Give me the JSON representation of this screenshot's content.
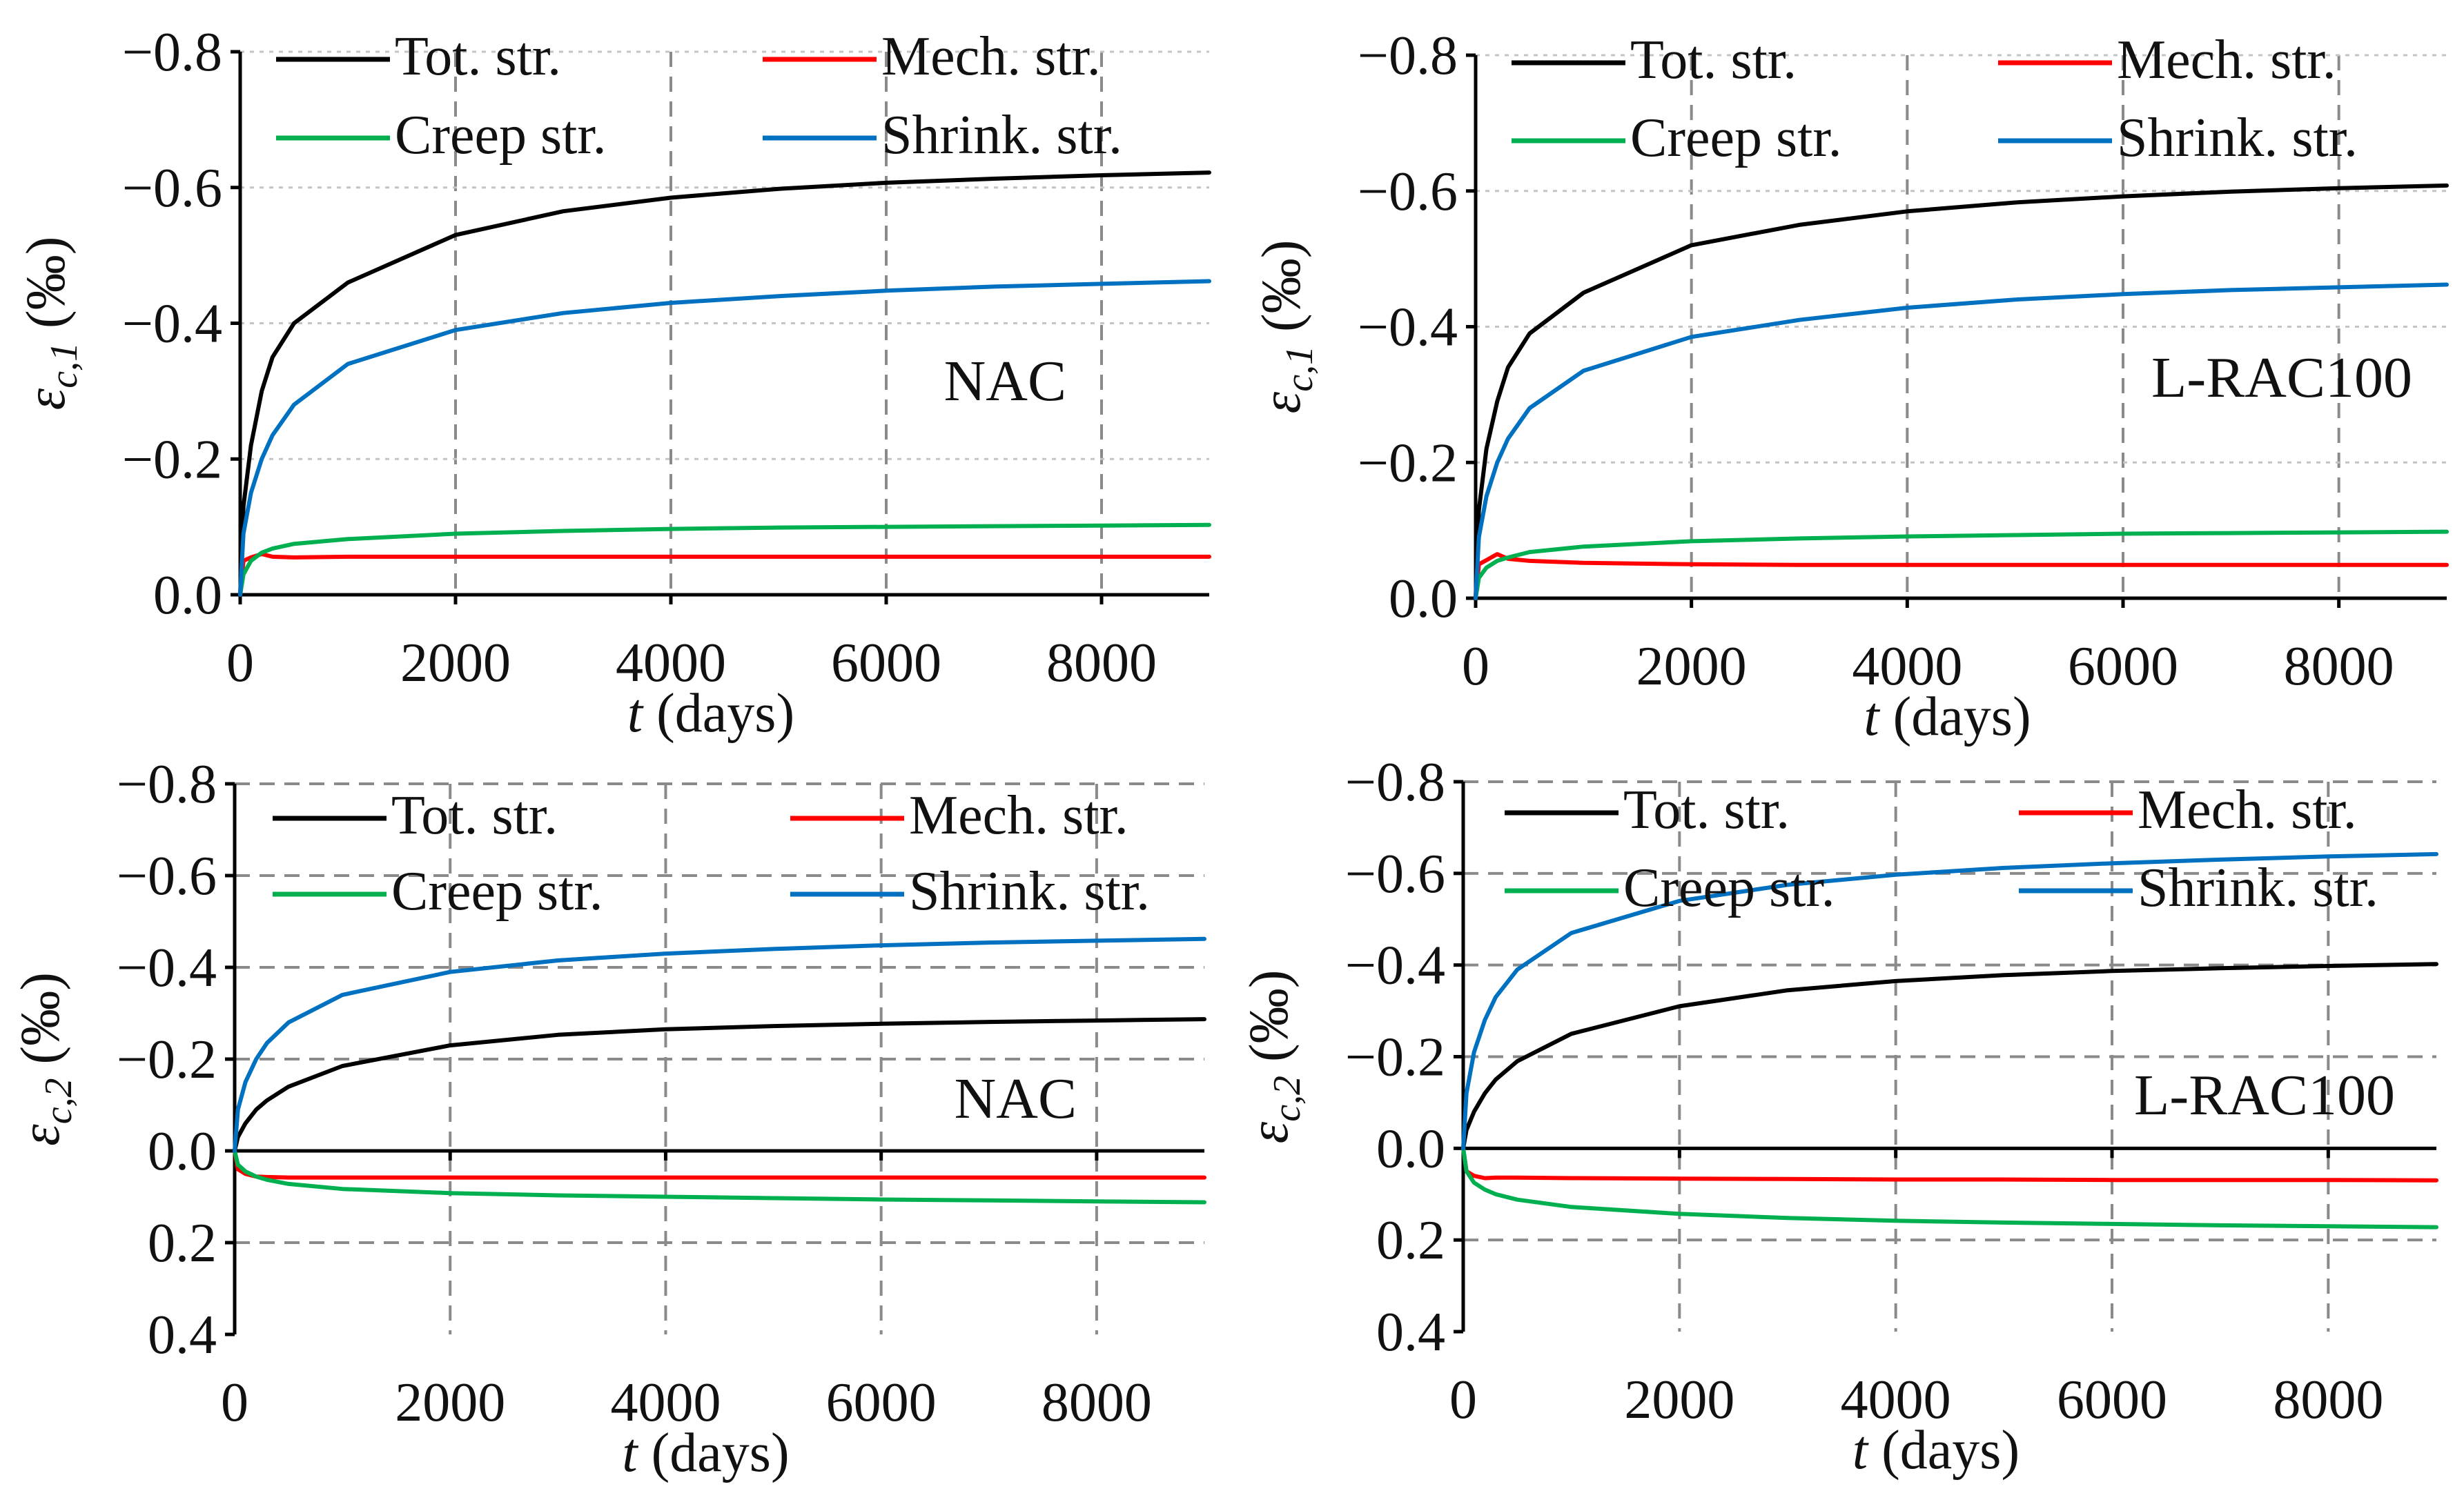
{
  "chart_data": [
    {
      "type": "line",
      "panel": "top-left",
      "annotation": "NAC",
      "xlabel_var": "t",
      "xlabel_unit": " (days)",
      "ylabel_base": "ε",
      "ylabel_sub": "c,1",
      "ylabel_unit": " (‰)",
      "xlim": [
        0,
        9000
      ],
      "ylim": [
        0.0,
        -0.8
      ],
      "xticks": [
        0,
        2000,
        4000,
        6000,
        8000
      ],
      "xtick_labels": [
        "0",
        "2000",
        "4000",
        "6000",
        "8000"
      ],
      "yticks": [
        0.0,
        -0.2,
        -0.4,
        -0.6,
        -0.8
      ],
      "ytick_labels": [
        "0.0",
        "−0.2",
        "−0.4",
        "−0.6",
        "−0.8"
      ],
      "grid": "vertical-dashed",
      "legend": "top",
      "series": [
        {
          "name": "Tot. str.",
          "color": "#000000",
          "x": [
            0,
            30,
            100,
            200,
            300,
            500,
            1000,
            2000,
            3000,
            4000,
            5000,
            6000,
            7000,
            8000,
            9000
          ],
          "y": [
            0.0,
            -0.13,
            -0.22,
            -0.3,
            -0.35,
            -0.4,
            -0.46,
            -0.53,
            -0.565,
            -0.585,
            -0.598,
            -0.607,
            -0.613,
            -0.618,
            -0.622
          ]
        },
        {
          "name": "Mech. str.",
          "color": "#ff0000",
          "x": [
            0,
            30,
            100,
            200,
            300,
            500,
            1000,
            2000,
            3000,
            4000,
            5000,
            6000,
            7000,
            8000,
            9000
          ],
          "y": [
            0.0,
            -0.05,
            -0.055,
            -0.06,
            -0.056,
            -0.055,
            -0.056,
            -0.056,
            -0.056,
            -0.056,
            -0.056,
            -0.056,
            -0.056,
            -0.056,
            -0.056
          ]
        },
        {
          "name": "Creep str.",
          "color": "#00b050",
          "x": [
            0,
            30,
            100,
            200,
            300,
            500,
            1000,
            2000,
            3000,
            4000,
            5000,
            6000,
            7000,
            8000,
            9000
          ],
          "y": [
            0.0,
            -0.03,
            -0.05,
            -0.062,
            -0.068,
            -0.075,
            -0.082,
            -0.09,
            -0.094,
            -0.097,
            -0.099,
            -0.1,
            -0.101,
            -0.102,
            -0.103
          ]
        },
        {
          "name": "Shrink. str.",
          "color": "#0070c0",
          "x": [
            0,
            30,
            100,
            200,
            300,
            500,
            1000,
            2000,
            3000,
            4000,
            5000,
            6000,
            7000,
            8000,
            9000
          ],
          "y": [
            0.0,
            -0.09,
            -0.15,
            -0.2,
            -0.235,
            -0.28,
            -0.34,
            -0.39,
            -0.415,
            -0.43,
            -0.44,
            -0.448,
            -0.454,
            -0.458,
            -0.462
          ]
        }
      ]
    },
    {
      "type": "line",
      "panel": "top-right",
      "annotation": "L-RAC100",
      "xlabel_var": "t",
      "xlabel_unit": " (days)",
      "ylabel_base": "ε",
      "ylabel_sub": "c,1",
      "ylabel_unit": " (‰)",
      "xlim": [
        0,
        9000
      ],
      "ylim": [
        0.0,
        -0.8
      ],
      "xticks": [
        0,
        2000,
        4000,
        6000,
        8000
      ],
      "xtick_labels": [
        "0",
        "2000",
        "4000",
        "6000",
        "8000"
      ],
      "yticks": [
        0.0,
        -0.2,
        -0.4,
        -0.6,
        -0.8
      ],
      "ytick_labels": [
        "0.0",
        "−0.2",
        "−0.4",
        "−0.6",
        "−0.8"
      ],
      "grid": "vertical-dashed",
      "legend": "top",
      "series": [
        {
          "name": "Tot. str.",
          "color": "#000000",
          "x": [
            0,
            30,
            100,
            200,
            300,
            500,
            1000,
            2000,
            3000,
            4000,
            5000,
            6000,
            7000,
            8000,
            9000
          ],
          "y": [
            0.0,
            -0.13,
            -0.22,
            -0.29,
            -0.34,
            -0.39,
            -0.45,
            -0.52,
            -0.55,
            -0.57,
            -0.583,
            -0.592,
            -0.599,
            -0.604,
            -0.608
          ]
        },
        {
          "name": "Mech. str.",
          "color": "#ff0000",
          "x": [
            0,
            30,
            100,
            200,
            300,
            500,
            1000,
            2000,
            3000,
            4000,
            5000,
            6000,
            7000,
            8000,
            9000
          ],
          "y": [
            0.0,
            -0.05,
            -0.056,
            -0.065,
            -0.058,
            -0.055,
            -0.052,
            -0.05,
            -0.049,
            -0.049,
            -0.049,
            -0.049,
            -0.049,
            -0.049,
            -0.049
          ]
        },
        {
          "name": "Creep str.",
          "color": "#00b050",
          "x": [
            0,
            30,
            100,
            200,
            300,
            500,
            1000,
            2000,
            3000,
            4000,
            5000,
            6000,
            7000,
            8000,
            9000
          ],
          "y": [
            0.0,
            -0.03,
            -0.045,
            -0.055,
            -0.06,
            -0.068,
            -0.076,
            -0.084,
            -0.088,
            -0.091,
            -0.093,
            -0.095,
            -0.096,
            -0.097,
            -0.098
          ]
        },
        {
          "name": "Shrink. str.",
          "color": "#0070c0",
          "x": [
            0,
            30,
            100,
            200,
            300,
            500,
            1000,
            2000,
            3000,
            4000,
            5000,
            6000,
            7000,
            8000,
            9000
          ],
          "y": [
            0.0,
            -0.09,
            -0.15,
            -0.2,
            -0.235,
            -0.28,
            -0.335,
            -0.385,
            -0.41,
            -0.428,
            -0.44,
            -0.448,
            -0.454,
            -0.458,
            -0.462
          ]
        }
      ]
    },
    {
      "type": "line",
      "panel": "bottom-left",
      "annotation": "NAC",
      "xlabel_var": "t",
      "xlabel_unit": " (days)",
      "ylabel_base": "ε",
      "ylabel_sub": "c,2",
      "ylabel_unit": " (‰)",
      "xlim": [
        0,
        9000
      ],
      "ylim": [
        0.4,
        -0.8
      ],
      "xticks": [
        0,
        2000,
        4000,
        6000,
        8000
      ],
      "xtick_labels": [
        "0",
        "2000",
        "4000",
        "6000",
        "8000"
      ],
      "yticks": [
        0.4,
        0.2,
        0.0,
        -0.2,
        -0.4,
        -0.6,
        -0.8
      ],
      "ytick_labels": [
        "0.4",
        "0.2",
        "0.0",
        "−0.2",
        "−0.4",
        "−0.6",
        "−0.8"
      ],
      "grid": "dashed",
      "legend": "top",
      "series": [
        {
          "name": "Tot. str.",
          "color": "#000000",
          "x": [
            0,
            30,
            100,
            200,
            300,
            500,
            1000,
            2000,
            3000,
            4000,
            5000,
            6000,
            7000,
            8000,
            9000
          ],
          "y": [
            0.0,
            -0.03,
            -0.06,
            -0.09,
            -0.11,
            -0.14,
            -0.185,
            -0.23,
            -0.253,
            -0.265,
            -0.272,
            -0.277,
            -0.281,
            -0.284,
            -0.287
          ]
        },
        {
          "name": "Mech. str.",
          "color": "#ff0000",
          "x": [
            0,
            30,
            100,
            200,
            300,
            500,
            1000,
            2000,
            3000,
            4000,
            5000,
            6000,
            7000,
            8000,
            9000
          ],
          "y": [
            0.0,
            0.04,
            0.05,
            0.056,
            0.057,
            0.058,
            0.058,
            0.058,
            0.058,
            0.058,
            0.058,
            0.058,
            0.058,
            0.058,
            0.058
          ]
        },
        {
          "name": "Creep str.",
          "color": "#00b050",
          "x": [
            0,
            30,
            100,
            200,
            300,
            500,
            1000,
            2000,
            3000,
            4000,
            5000,
            6000,
            7000,
            8000,
            9000
          ],
          "y": [
            0.0,
            0.03,
            0.045,
            0.056,
            0.063,
            0.072,
            0.083,
            0.092,
            0.097,
            0.1,
            0.103,
            0.106,
            0.108,
            0.11,
            0.112
          ]
        },
        {
          "name": "Shrink. str.",
          "color": "#0070c0",
          "x": [
            0,
            30,
            100,
            200,
            300,
            500,
            1000,
            2000,
            3000,
            4000,
            5000,
            6000,
            7000,
            8000,
            9000
          ],
          "y": [
            0.0,
            -0.09,
            -0.15,
            -0.2,
            -0.235,
            -0.28,
            -0.34,
            -0.39,
            -0.415,
            -0.43,
            -0.44,
            -0.448,
            -0.454,
            -0.458,
            -0.462
          ]
        }
      ]
    },
    {
      "type": "line",
      "panel": "bottom-right",
      "annotation": "L-RAC100",
      "xlabel_var": "t",
      "xlabel_unit": " (days)",
      "ylabel_base": "ε",
      "ylabel_sub": "c,2",
      "ylabel_unit": " (‰)",
      "xlim": [
        0,
        9000
      ],
      "ylim": [
        0.4,
        -0.8
      ],
      "xticks": [
        0,
        2000,
        4000,
        6000,
        8000
      ],
      "xtick_labels": [
        "0",
        "2000",
        "4000",
        "6000",
        "8000"
      ],
      "yticks": [
        0.4,
        0.2,
        0.0,
        -0.2,
        -0.4,
        -0.6,
        -0.8
      ],
      "ytick_labels": [
        "0.4",
        "0.2",
        "0.0",
        "−0.2",
        "−0.4",
        "−0.6",
        "−0.8"
      ],
      "grid": "dashed",
      "legend": "top",
      "series": [
        {
          "name": "Tot. str.",
          "color": "#000000",
          "x": [
            0,
            30,
            100,
            200,
            300,
            500,
            1000,
            2000,
            3000,
            4000,
            5000,
            6000,
            7000,
            8000,
            9000
          ],
          "y": [
            0.0,
            -0.04,
            -0.08,
            -0.12,
            -0.15,
            -0.19,
            -0.25,
            -0.31,
            -0.345,
            -0.365,
            -0.378,
            -0.387,
            -0.393,
            -0.398,
            -0.402
          ]
        },
        {
          "name": "Mech. str.",
          "color": "#ff0000",
          "x": [
            0,
            30,
            100,
            200,
            300,
            500,
            1000,
            2000,
            3000,
            4000,
            5000,
            6000,
            7000,
            8000,
            9000
          ],
          "y": [
            0.0,
            0.05,
            0.06,
            0.065,
            0.064,
            0.064,
            0.065,
            0.066,
            0.067,
            0.068,
            0.068,
            0.069,
            0.069,
            0.069,
            0.07
          ]
        },
        {
          "name": "Creep str.",
          "color": "#00b050",
          "x": [
            0,
            30,
            100,
            200,
            300,
            500,
            1000,
            2000,
            3000,
            4000,
            5000,
            6000,
            7000,
            8000,
            9000
          ],
          "y": [
            0.0,
            0.05,
            0.075,
            0.09,
            0.1,
            0.112,
            0.128,
            0.143,
            0.152,
            0.158,
            0.162,
            0.165,
            0.168,
            0.17,
            0.172
          ]
        },
        {
          "name": "Shrink. str.",
          "color": "#0070c0",
          "x": [
            0,
            30,
            100,
            200,
            300,
            500,
            1000,
            2000,
            3000,
            4000,
            5000,
            6000,
            7000,
            8000,
            9000
          ],
          "y": [
            0.0,
            -0.12,
            -0.21,
            -0.28,
            -0.33,
            -0.39,
            -0.47,
            -0.54,
            -0.575,
            -0.597,
            -0.612,
            -0.622,
            -0.63,
            -0.637,
            -0.642
          ]
        }
      ]
    }
  ]
}
